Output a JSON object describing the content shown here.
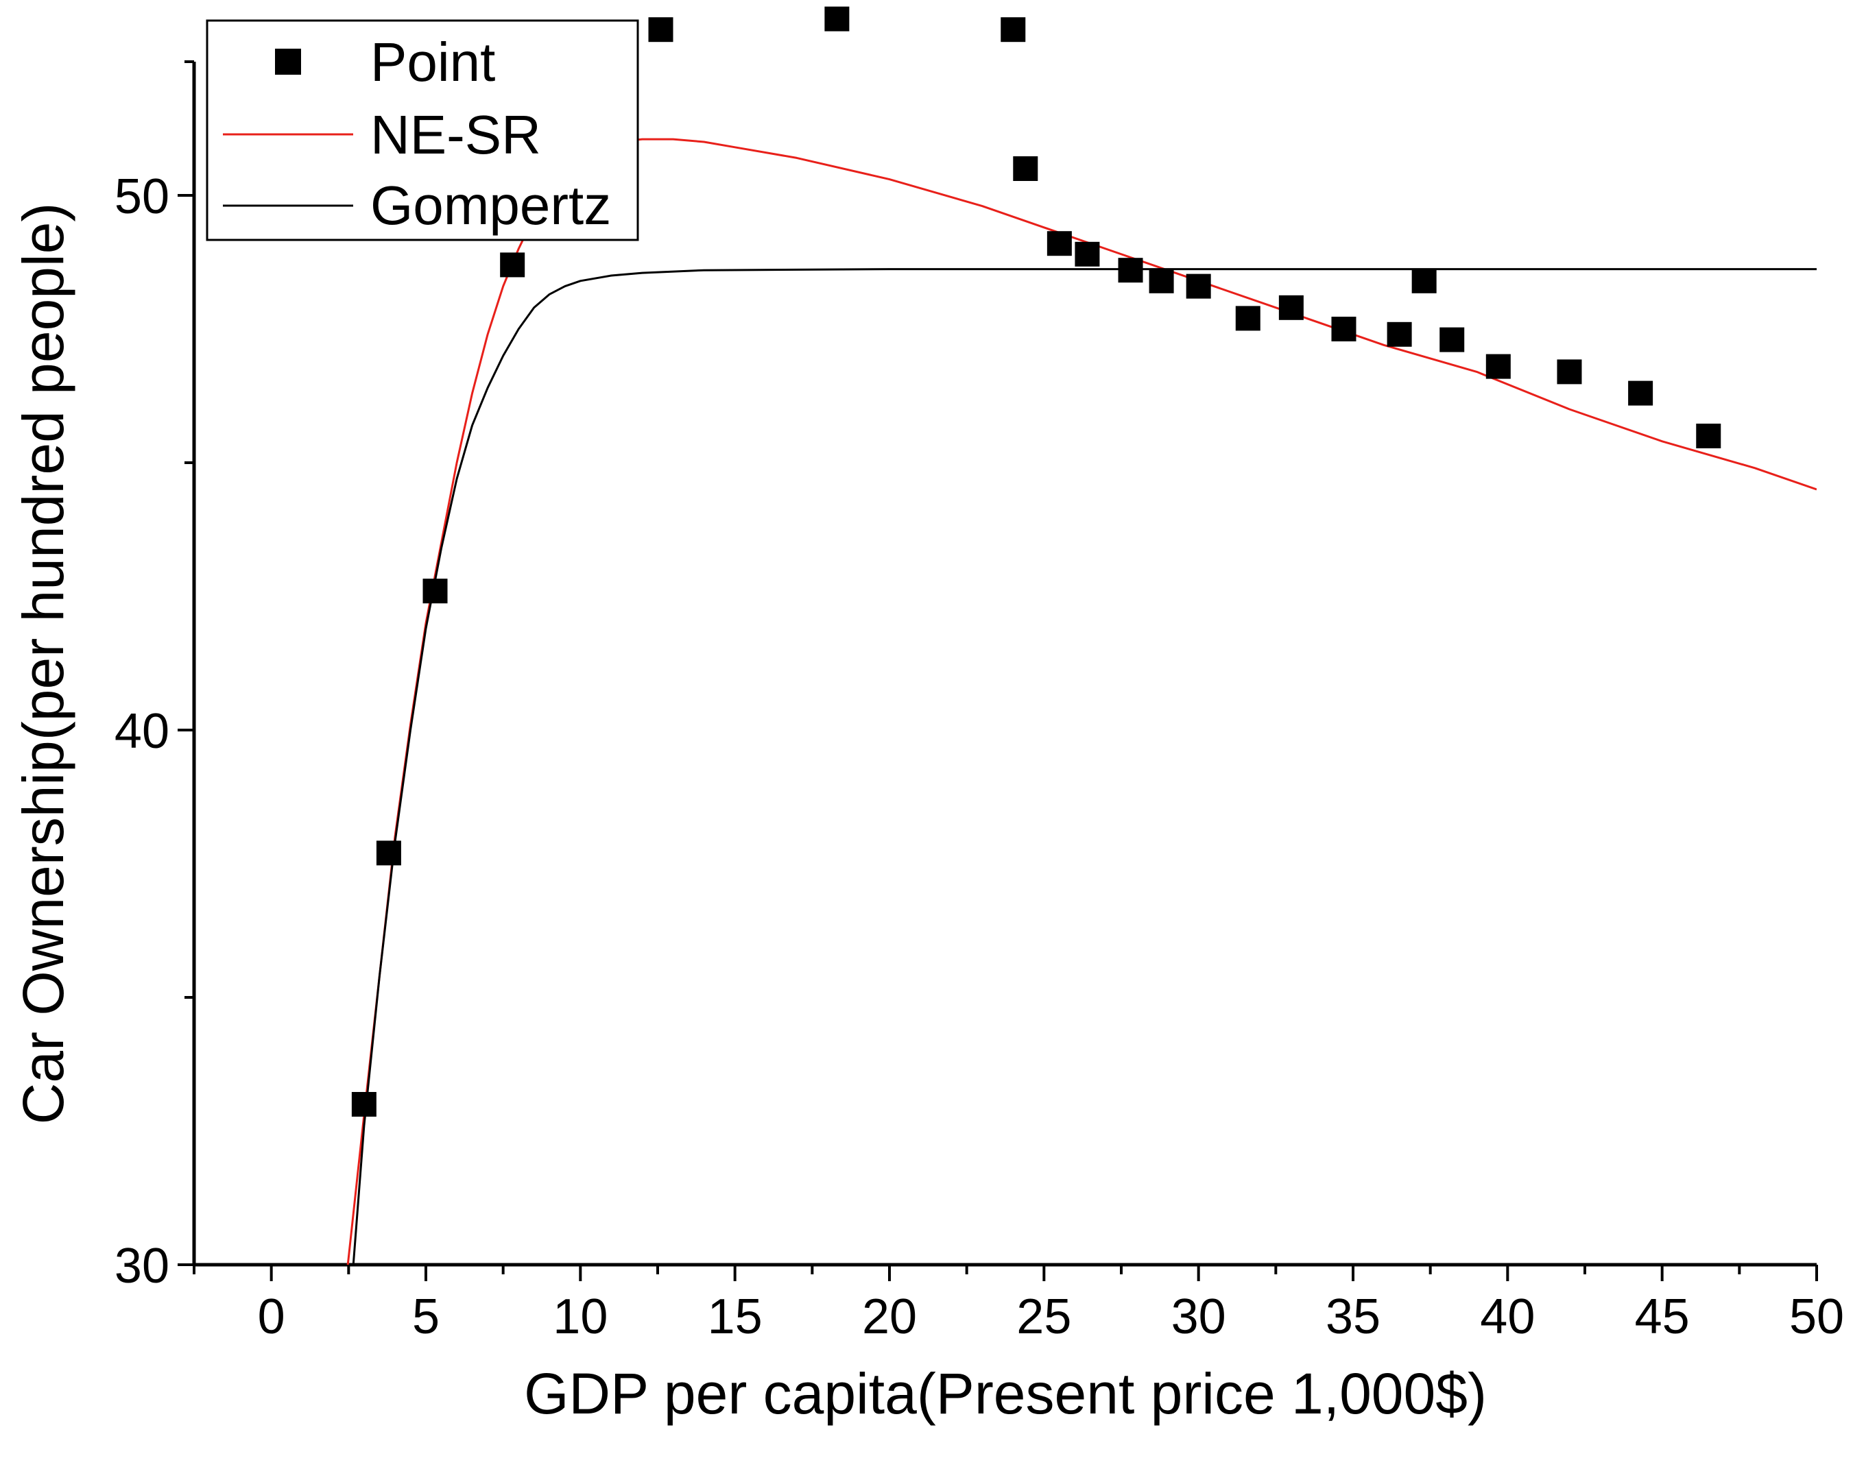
{
  "chart_data": {
    "type": "scatter",
    "title": "",
    "xlabel": "GDP per capita(Present price 1,000$)",
    "ylabel": "Car Ownership(per hundred people)",
    "xlim": [
      -2.5,
      50
    ],
    "ylim": [
      30,
      52.5
    ],
    "x_ticks": [
      0,
      5,
      10,
      15,
      20,
      25,
      30,
      35,
      40,
      45,
      50
    ],
    "x_tick_labels": [
      "0",
      "5",
      "10",
      "15",
      "20",
      "25",
      "30",
      "35",
      "40",
      "45",
      "50"
    ],
    "y_ticks": [
      30,
      40,
      50
    ],
    "y_tick_labels": [
      "30",
      "40",
      "50"
    ],
    "legend": {
      "position": "top-left",
      "entries": [
        "Point",
        "NE-SR",
        "Gompertz"
      ]
    },
    "series": [
      {
        "name": "Point",
        "kind": "scatter",
        "color": "#000000",
        "points": [
          [
            3.0,
            33.0
          ],
          [
            3.8,
            37.7
          ],
          [
            5.3,
            42.6
          ],
          [
            7.8,
            48.7
          ],
          [
            12.6,
            53.1
          ],
          [
            18.3,
            53.3
          ],
          [
            24.0,
            53.1
          ],
          [
            24.4,
            50.5
          ],
          [
            25.5,
            49.1
          ],
          [
            26.4,
            48.9
          ],
          [
            27.8,
            48.6
          ],
          [
            28.8,
            48.4
          ],
          [
            30.0,
            48.3
          ],
          [
            31.6,
            47.7
          ],
          [
            33.0,
            47.9
          ],
          [
            34.7,
            47.5
          ],
          [
            36.5,
            47.4
          ],
          [
            37.3,
            48.4
          ],
          [
            38.2,
            47.3
          ],
          [
            39.7,
            46.8
          ],
          [
            42.0,
            46.7
          ],
          [
            44.3,
            46.3
          ],
          [
            46.5,
            45.5
          ]
        ]
      },
      {
        "name": "NE-SR",
        "kind": "line",
        "color": "#e8201a",
        "points": [
          [
            2.4,
            29.6
          ],
          [
            3.0,
            32.8
          ],
          [
            3.5,
            35.4
          ],
          [
            4.0,
            38.0
          ],
          [
            4.5,
            40.1
          ],
          [
            5.0,
            42.0
          ],
          [
            5.5,
            43.5
          ],
          [
            6.0,
            45.0
          ],
          [
            6.5,
            46.3
          ],
          [
            7.0,
            47.4
          ],
          [
            7.5,
            48.3
          ],
          [
            8.0,
            49.0
          ],
          [
            8.5,
            49.6
          ],
          [
            9.0,
            50.1
          ],
          [
            9.5,
            50.5
          ],
          [
            10.0,
            50.7
          ],
          [
            10.5,
            50.85
          ],
          [
            11.0,
            50.95
          ],
          [
            11.5,
            51.02
          ],
          [
            12.0,
            51.05
          ],
          [
            13.0,
            51.05
          ],
          [
            14.0,
            51.0
          ],
          [
            15.0,
            50.9
          ],
          [
            17.0,
            50.7
          ],
          [
            20.0,
            50.3
          ],
          [
            23.0,
            49.8
          ],
          [
            25.0,
            49.4
          ],
          [
            27.0,
            49.0
          ],
          [
            30.0,
            48.4
          ],
          [
            33.0,
            47.8
          ],
          [
            36.0,
            47.2
          ],
          [
            39.0,
            46.7
          ],
          [
            42.0,
            46.0
          ],
          [
            45.0,
            45.4
          ],
          [
            48.0,
            44.9
          ],
          [
            50.0,
            44.5
          ]
        ]
      },
      {
        "name": "Gompertz",
        "kind": "line",
        "color": "#000000",
        "points": [
          [
            2.6,
            29.6
          ],
          [
            3.0,
            32.6
          ],
          [
            3.5,
            35.4
          ],
          [
            4.0,
            37.9
          ],
          [
            4.5,
            40.0
          ],
          [
            5.0,
            41.9
          ],
          [
            5.5,
            43.4
          ],
          [
            6.0,
            44.7
          ],
          [
            6.5,
            45.7
          ],
          [
            7.0,
            46.4
          ],
          [
            7.5,
            47.0
          ],
          [
            8.0,
            47.5
          ],
          [
            8.5,
            47.9
          ],
          [
            9.0,
            48.15
          ],
          [
            9.5,
            48.3
          ],
          [
            10.0,
            48.4
          ],
          [
            11.0,
            48.5
          ],
          [
            12.0,
            48.55
          ],
          [
            14.0,
            48.6
          ],
          [
            20.0,
            48.62
          ],
          [
            30.0,
            48.62
          ],
          [
            40.0,
            48.62
          ],
          [
            50.0,
            48.62
          ]
        ]
      }
    ]
  }
}
